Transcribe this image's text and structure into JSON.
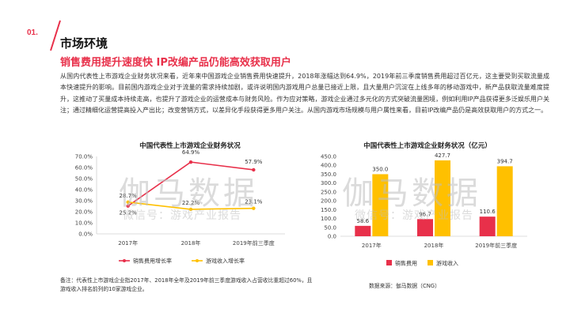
{
  "header": {
    "section_number": "01.",
    "section_title": "市场环境",
    "headline": "销售费用提升速度快   IP改编产品仍能高效获取用户",
    "body": "从国内代表性上市游戏企业财务状况来看，近年来中国游戏企业销售费用快速提升，2018年涨幅达到64.9%，2019年前三季度销售费用超过百亿元，这主要受到买取流量成本快速提升的影响。目前国内游戏企业对于流量的需求持续加剧，或许说明国内游戏用户总量已接近上限，且大量用户沉淀在上线多年的移动游戏中，新产品获取流量难度提升，这推动了买量成本持续走高，也提升了游戏企业的运营成本与财务风险。作为应对策略，游戏企业通过多元化的方式突破流量困境，例如利用IP产品获得更多泛娱乐用户关注；通过精细化运营提高投入产出比；改变营销方式，以差异化手段获得更多用户关注。从国内游戏市场规模与用户属性来看，目前IP改编产品仍是高效获取用户的方式之一。"
  },
  "watermark": {
    "big": "伽马数据",
    "small": "微信号：游戏产业报告"
  },
  "colors": {
    "accent": "#e8304a",
    "yellow": "#ffc000",
    "axis": "#d0d0d0",
    "text": "#333333"
  },
  "chart_data": [
    {
      "type": "line",
      "title": "中国代表性上市游戏企业财务状况",
      "categories": [
        "2017年",
        "2018年",
        "2019年前三季度"
      ],
      "yticks": [
        "0.0%",
        "10.0%",
        "20.0%",
        "30.0%",
        "40.0%",
        "50.0%",
        "60.0%",
        "70.0%"
      ],
      "ylim": [
        0,
        70
      ],
      "series": [
        {
          "name": "销售费用增长率",
          "color": "#e8304a",
          "values": [
            25.2,
            64.9,
            57.9
          ],
          "labels": [
            "25.2%",
            "64.9%",
            "57.9%"
          ]
        },
        {
          "name": "游戏收入增长率",
          "color": "#ffc000",
          "values": [
            28.7,
            22.2,
            23.1
          ],
          "labels": [
            "28.7%",
            "22.2%",
            "23.1%"
          ]
        }
      ]
    },
    {
      "type": "bar",
      "title": "中国代表性上市游戏企业财务状况（亿元）",
      "categories": [
        "2017年",
        "2018年",
        "2019年前三季度"
      ],
      "yticks": [
        "0.0",
        "50.0",
        "100.0",
        "150.0",
        "200.0",
        "250.0",
        "300.0",
        "350.0",
        "400.0",
        "450.0"
      ],
      "ylim": [
        0,
        450
      ],
      "series": [
        {
          "name": "销售费用",
          "color": "#e8304a",
          "values": [
            58.6,
            96.7,
            110.6
          ],
          "labels": [
            "58.6",
            "96.7",
            "110.6"
          ]
        },
        {
          "name": "游戏收入",
          "color": "#ffc000",
          "values": [
            350.0,
            427.7,
            394.7
          ],
          "labels": [
            "350.0",
            "427.7",
            "394.7"
          ]
        }
      ]
    }
  ],
  "footer": {
    "note": "备注：代表性上市游戏企业指2017年、2018年全年及2019年前三季度游戏收入占营收比重超过60%，且游戏收入排名前列的10家游戏企业。",
    "source": "数据来源：伽马数据（CNG）"
  }
}
